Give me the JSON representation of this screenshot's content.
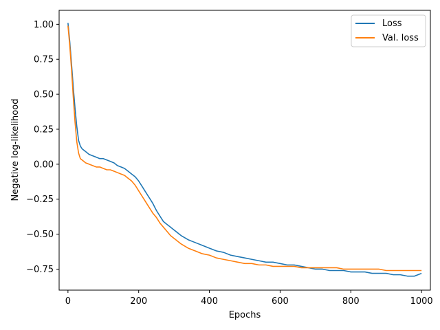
{
  "chart_data": {
    "type": "line",
    "title": "",
    "xlabel": "Epochs",
    "ylabel": "Negative log-likelihood",
    "xlim": [
      -25,
      1025
    ],
    "ylim": [
      -0.9,
      1.1
    ],
    "xticks": [
      0,
      200,
      400,
      600,
      800,
      1000
    ],
    "xtick_labels": [
      "0",
      "200",
      "400",
      "600",
      "800",
      "1000"
    ],
    "yticks": [
      1.0,
      0.75,
      0.5,
      0.25,
      0.0,
      -0.25,
      -0.5,
      -0.75
    ],
    "ytick_labels": [
      "1.00",
      "0.75",
      "0.50",
      "0.25",
      "0.00",
      "−0.25",
      "−0.50",
      "−0.75"
    ],
    "grid": false,
    "legend_position": "top-right",
    "series": [
      {
        "name": "Loss",
        "color": "#1f77b4",
        "x": [
          0,
          5,
          10,
          15,
          20,
          25,
          30,
          35,
          40,
          50,
          60,
          70,
          80,
          90,
          100,
          110,
          120,
          130,
          140,
          150,
          160,
          170,
          180,
          190,
          200,
          210,
          220,
          230,
          240,
          250,
          260,
          270,
          280,
          290,
          300,
          320,
          340,
          360,
          380,
          400,
          420,
          440,
          460,
          480,
          500,
          520,
          540,
          560,
          580,
          600,
          620,
          640,
          660,
          680,
          700,
          720,
          740,
          760,
          780,
          800,
          820,
          840,
          860,
          880,
          900,
          920,
          940,
          960,
          980,
          1000
        ],
        "values": [
          1.01,
          0.88,
          0.72,
          0.55,
          0.4,
          0.27,
          0.17,
          0.13,
          0.11,
          0.09,
          0.07,
          0.06,
          0.05,
          0.04,
          0.04,
          0.03,
          0.02,
          0.01,
          -0.01,
          -0.02,
          -0.03,
          -0.05,
          -0.07,
          -0.09,
          -0.12,
          -0.16,
          -0.2,
          -0.24,
          -0.28,
          -0.33,
          -0.37,
          -0.41,
          -0.43,
          -0.45,
          -0.47,
          -0.51,
          -0.54,
          -0.56,
          -0.58,
          -0.6,
          -0.62,
          -0.63,
          -0.65,
          -0.66,
          -0.67,
          -0.68,
          -0.69,
          -0.7,
          -0.7,
          -0.71,
          -0.72,
          -0.72,
          -0.73,
          -0.74,
          -0.75,
          -0.75,
          -0.76,
          -0.76,
          -0.76,
          -0.77,
          -0.77,
          -0.77,
          -0.78,
          -0.78,
          -0.78,
          -0.79,
          -0.79,
          -0.8,
          -0.8,
          -0.78
        ]
      },
      {
        "name": "Val. loss",
        "color": "#ff7f0e",
        "x": [
          0,
          5,
          10,
          15,
          20,
          25,
          30,
          35,
          40,
          50,
          60,
          70,
          80,
          90,
          100,
          110,
          120,
          130,
          140,
          150,
          160,
          170,
          180,
          190,
          200,
          210,
          220,
          230,
          240,
          250,
          260,
          270,
          280,
          290,
          300,
          320,
          340,
          360,
          380,
          400,
          420,
          440,
          460,
          480,
          500,
          520,
          540,
          560,
          580,
          600,
          620,
          640,
          660,
          680,
          700,
          720,
          740,
          760,
          780,
          800,
          820,
          840,
          860,
          880,
          900,
          920,
          940,
          960,
          980,
          1000
        ],
        "values": [
          0.99,
          0.85,
          0.68,
          0.48,
          0.3,
          0.16,
          0.08,
          0.04,
          0.03,
          0.01,
          0.0,
          -0.01,
          -0.02,
          -0.02,
          -0.03,
          -0.04,
          -0.04,
          -0.05,
          -0.06,
          -0.07,
          -0.08,
          -0.1,
          -0.12,
          -0.15,
          -0.19,
          -0.23,
          -0.27,
          -0.31,
          -0.35,
          -0.38,
          -0.42,
          -0.45,
          -0.48,
          -0.51,
          -0.53,
          -0.57,
          -0.6,
          -0.62,
          -0.64,
          -0.65,
          -0.67,
          -0.68,
          -0.69,
          -0.7,
          -0.71,
          -0.71,
          -0.72,
          -0.72,
          -0.73,
          -0.73,
          -0.73,
          -0.73,
          -0.74,
          -0.74,
          -0.74,
          -0.74,
          -0.74,
          -0.74,
          -0.75,
          -0.75,
          -0.75,
          -0.75,
          -0.75,
          -0.75,
          -0.76,
          -0.76,
          -0.76,
          -0.76,
          -0.76,
          -0.76
        ]
      }
    ]
  }
}
